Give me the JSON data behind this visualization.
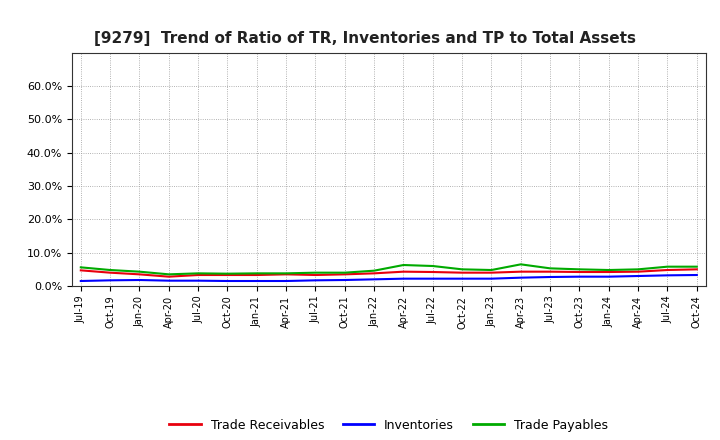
{
  "title": "[9279]  Trend of Ratio of TR, Inventories and TP to Total Assets",
  "x_labels": [
    "Jul-19",
    "Oct-19",
    "Jan-20",
    "Apr-20",
    "Jul-20",
    "Oct-20",
    "Jan-21",
    "Apr-21",
    "Jul-21",
    "Oct-21",
    "Jan-22",
    "Apr-22",
    "Jul-22",
    "Oct-22",
    "Jan-23",
    "Apr-23",
    "Jul-23",
    "Oct-23",
    "Jan-24",
    "Apr-24",
    "Jul-24",
    "Oct-24"
  ],
  "trade_receivables": [
    0.047,
    0.04,
    0.035,
    0.028,
    0.033,
    0.033,
    0.033,
    0.035,
    0.033,
    0.035,
    0.038,
    0.043,
    0.042,
    0.04,
    0.04,
    0.043,
    0.043,
    0.042,
    0.042,
    0.043,
    0.048,
    0.05
  ],
  "inventories": [
    0.015,
    0.017,
    0.018,
    0.016,
    0.016,
    0.015,
    0.015,
    0.015,
    0.017,
    0.018,
    0.02,
    0.022,
    0.022,
    0.022,
    0.022,
    0.025,
    0.027,
    0.028,
    0.028,
    0.03,
    0.032,
    0.033
  ],
  "trade_payables": [
    0.056,
    0.048,
    0.043,
    0.035,
    0.038,
    0.037,
    0.038,
    0.038,
    0.04,
    0.04,
    0.046,
    0.063,
    0.06,
    0.05,
    0.048,
    0.065,
    0.053,
    0.05,
    0.048,
    0.05,
    0.058,
    0.058
  ],
  "tr_color": "#e8000d",
  "inv_color": "#0000ff",
  "tp_color": "#00aa00",
  "background_color": "#ffffff",
  "grid_color": "#999999",
  "ylim": [
    0.0,
    0.7
  ],
  "yticks": [
    0.0,
    0.1,
    0.2,
    0.3,
    0.4,
    0.5,
    0.6
  ],
  "legend_labels": [
    "Trade Receivables",
    "Inventories",
    "Trade Payables"
  ],
  "title_fontsize": 11,
  "tick_fontsize": 8,
  "legend_fontsize": 9
}
